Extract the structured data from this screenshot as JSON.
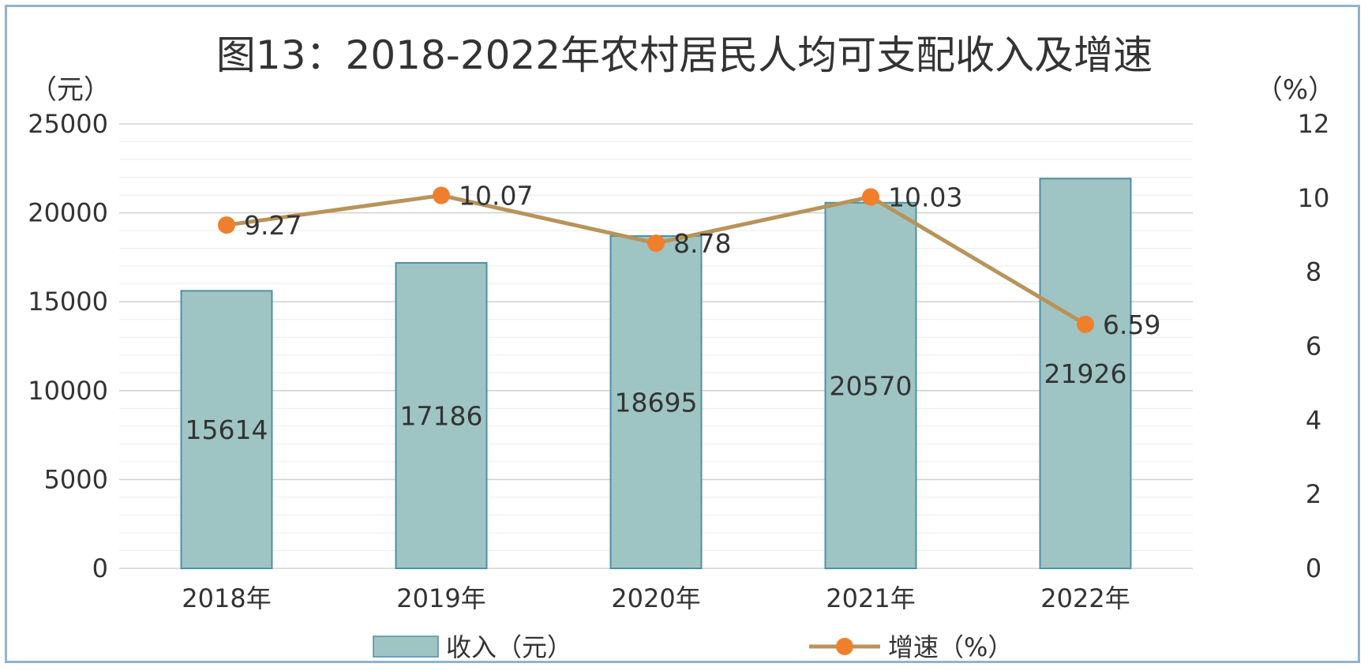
{
  "chart_data": {
    "type": "bar",
    "title": "图13：2018-2022年农村居民人均可支配收入及增速",
    "categories": [
      "2018年",
      "2019年",
      "2020年",
      "2021年",
      "2022年"
    ],
    "series": [
      {
        "name": "收入（元）",
        "type": "bar",
        "axis": "left",
        "values": [
          15614,
          17186,
          18695,
          20570,
          21926
        ],
        "color": "#9ec5c4",
        "edge_color": "#4f8fa6"
      },
      {
        "name": "增速（%）",
        "type": "line",
        "axis": "right",
        "values": [
          9.27,
          10.07,
          8.78,
          10.03,
          6.59
        ],
        "line_color": "#b8935a",
        "marker_color": "#f07f2c"
      }
    ],
    "y_left": {
      "unit": "（元）",
      "range": [
        0,
        25000
      ],
      "ticks": [
        "0",
        "5000",
        "10000",
        "15000",
        "20000",
        "25000"
      ]
    },
    "y_right": {
      "unit": "（%）",
      "range": [
        0,
        12
      ],
      "ticks": [
        "0",
        "2",
        "4",
        "6",
        "8",
        "10",
        "12"
      ]
    },
    "grid": true,
    "legend": "bottom-center"
  }
}
